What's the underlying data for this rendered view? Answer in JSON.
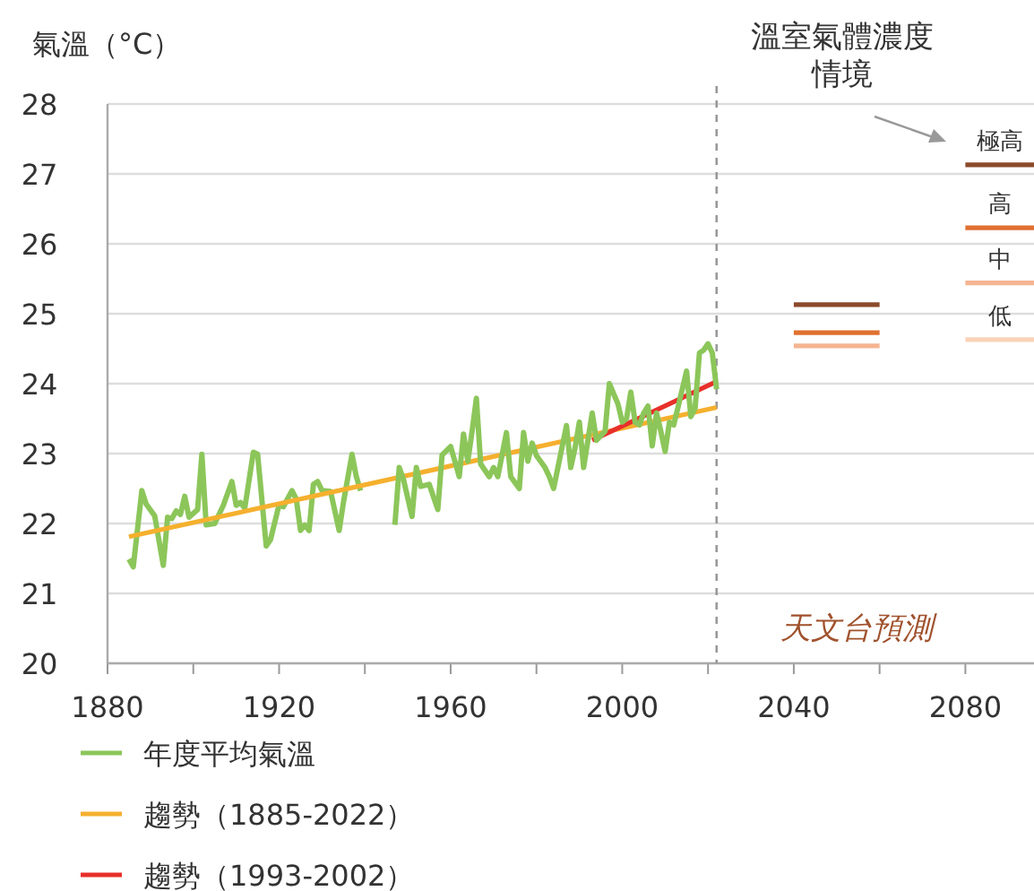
{
  "chart_data": {
    "type": "line",
    "ylabel": "氣溫（°C）",
    "xlim": [
      1880,
      2096
    ],
    "ylim": [
      20,
      28
    ],
    "xticks": [
      1880,
      {
        "value": 1900,
        "label": null
      },
      1920,
      {
        "value": 1940,
        "label": null
      },
      1960,
      {
        "value": 1980,
        "label": null
      },
      2000,
      {
        "value": 2020,
        "label": null
      },
      2040,
      {
        "value": 2060,
        "label": null
      },
      2080
    ],
    "yticks": [
      20,
      21,
      22,
      23,
      24,
      25,
      26,
      27,
      28
    ],
    "grid": "y",
    "legend": "bottom",
    "annotations": [
      "溫室氣體濃度情境",
      "天文台預測"
    ],
    "ref_lines": [
      {
        "axis": "x",
        "value": 2022,
        "color": "#999999",
        "line_style": "dashed"
      }
    ],
    "series": [
      {
        "name": "年度平均氣溫",
        "color": "#8cc65a",
        "x": [
          1885,
          1886,
          1888,
          1889,
          1891,
          1893,
          1894,
          1895,
          1896,
          1897,
          1898,
          1899,
          1901,
          1902,
          1903,
          1905,
          1907,
          1909,
          1910,
          1911,
          1912,
          1914,
          1915,
          1917,
          1918,
          1920,
          1921,
          1923,
          1924,
          1925,
          1926,
          1927,
          1928,
          1929,
          1930,
          1932,
          1934,
          1935,
          1937,
          1938,
          1939
        ],
        "values": [
          21.49,
          21.38,
          22.47,
          22.28,
          22.11,
          21.4,
          22.09,
          22.07,
          22.18,
          22.13,
          22.39,
          22.09,
          22.2,
          22.99,
          21.98,
          22.0,
          22.26,
          22.6,
          22.26,
          22.3,
          22.22,
          23.02,
          22.99,
          21.68,
          21.77,
          22.27,
          22.24,
          22.47,
          22.35,
          21.9,
          21.98,
          21.9,
          22.56,
          22.6,
          22.47,
          22.46,
          21.9,
          22.3,
          22.99,
          22.67,
          22.47
        ]
      },
      {
        "name": "趨勢（1885-2022）",
        "color": "#f5b02e",
        "x": [
          1885,
          2022
        ],
        "values": [
          21.81,
          23.66
        ]
      },
      {
        "name": "趨勢（1993-2002）",
        "color": "#e8302a",
        "x": [
          1993,
          2022
        ],
        "values": [
          23.19,
          24.03
        ]
      },
      {
        "color": "#8cc65a",
        "x": [
          1947,
          1948,
          1949,
          1951,
          1952,
          1953,
          1955,
          1957,
          1958,
          1960,
          1962,
          1963,
          1964,
          1965,
          1966,
          1967,
          1968,
          1969,
          1970,
          1971,
          1973,
          1974,
          1976,
          1977,
          1978,
          1979,
          1980,
          1982,
          1983,
          1984,
          1985,
          1987,
          1988,
          1989,
          1990,
          1991,
          1993,
          1994,
          1996,
          1997,
          1999,
          2000,
          2001,
          2002,
          2003,
          2004,
          2005,
          2006,
          2007,
          2008,
          2009,
          2010,
          2011,
          2012,
          2013,
          2015,
          2016,
          2017,
          2018,
          2019,
          2020,
          2021,
          2022
        ],
        "values": [
          21.98,
          22.8,
          22.63,
          22.1,
          22.8,
          22.53,
          22.56,
          22.2,
          22.98,
          23.1,
          22.67,
          23.28,
          22.89,
          23.32,
          23.79,
          22.85,
          22.76,
          22.67,
          22.8,
          22.67,
          23.3,
          22.67,
          22.5,
          23.3,
          22.89,
          23.15,
          22.97,
          22.8,
          22.67,
          22.5,
          22.8,
          23.4,
          22.8,
          23.08,
          23.45,
          22.8,
          23.58,
          23.19,
          23.32,
          24.0,
          23.71,
          23.45,
          23.5,
          23.88,
          23.45,
          23.41,
          23.58,
          23.68,
          23.11,
          23.58,
          23.32,
          23.03,
          23.45,
          23.41,
          23.66,
          24.18,
          23.53,
          23.65,
          24.44,
          24.48,
          24.57,
          24.44,
          23.92
        ]
      },
      {
        "color": "#8b4a2b",
        "x": [
          2040,
          2060
        ],
        "values": [
          25.13,
          25.13
        ]
      },
      {
        "color": "#e07030",
        "x": [
          2040,
          2060
        ],
        "values": [
          24.73,
          24.73
        ]
      },
      {
        "color": "#f5b592",
        "x": [
          2040,
          2060
        ],
        "values": [
          24.54,
          24.54
        ]
      },
      {
        "name": "極高",
        "color": "#8b4a2b",
        "x": [
          2080,
          2096
        ],
        "values": [
          27.13,
          27.13
        ]
      },
      {
        "name": "高",
        "color": "#e07030",
        "x": [
          2080,
          2096
        ],
        "values": [
          26.23,
          26.23
        ]
      },
      {
        "name": "中",
        "color": "#f5b592",
        "x": [
          2080,
          2096
        ],
        "values": [
          25.44,
          25.44
        ]
      },
      {
        "name": "低",
        "color": "#fbd3b8",
        "x": [
          2080,
          2096
        ],
        "values": [
          24.63,
          24.63
        ]
      }
    ]
  }
}
